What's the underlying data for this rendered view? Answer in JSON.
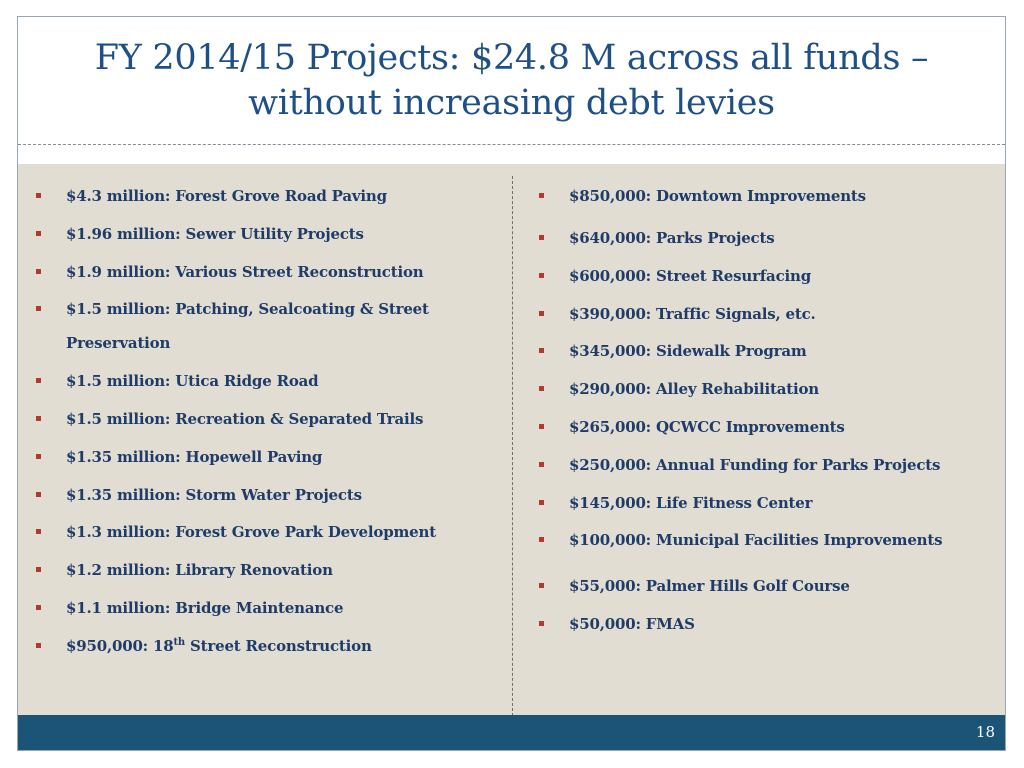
{
  "title": {
    "line1": "FY 2014/15 Projects:  $24.8 M across all funds –",
    "line2": "without increasing debt levies"
  },
  "left_items": [
    "$4.3 million:  Forest Grove Road Paving",
    "$1.96 million:  Sewer Utility Projects",
    "$1.9 million:  Various Street Reconstruction",
    "$1.5 million:  Patching, Sealcoating & Street Preservation",
    "$1.5 million:  Utica Ridge Road",
    "$1.5 million:  Recreation &  Separated Trails",
    "$1.35 million:  Hopewell Paving",
    "$1.35 million:  Storm Water Projects",
    "$1.3 million:  Forest Grove Park Development",
    "$1.2 million:  Library Renovation",
    "$1.1 million:  Bridge Maintenance"
  ],
  "left_last": {
    "prefix": "$950,000:  18",
    "sup": "th",
    "suffix": " Street Reconstruction"
  },
  "right_items": [
    "$850,000:  Downtown Improvements",
    "$640,000:  Parks Projects",
    "$600,000:  Street Resurfacing",
    "$390,000:  Traffic Signals, etc.",
    "$345,000:  Sidewalk Program",
    "$290,000:  Alley Rehabilitation",
    "$265,000:  QCWCC Improvements",
    "$250,000: Annual Funding for Parks Projects",
    "$145,000:  Life Fitness Center",
    "$100,000:  Municipal Facilities Improvements",
    "$55,000:  Palmer Hills Golf Course",
    "$50,000:  FMAS"
  ],
  "page_number": "18",
  "colors": {
    "title": "#1e4f86",
    "text": "#1f3c68",
    "bullet": "#b03a2e",
    "content_bg": "#e1ddd3",
    "footer": "#1c5478"
  }
}
